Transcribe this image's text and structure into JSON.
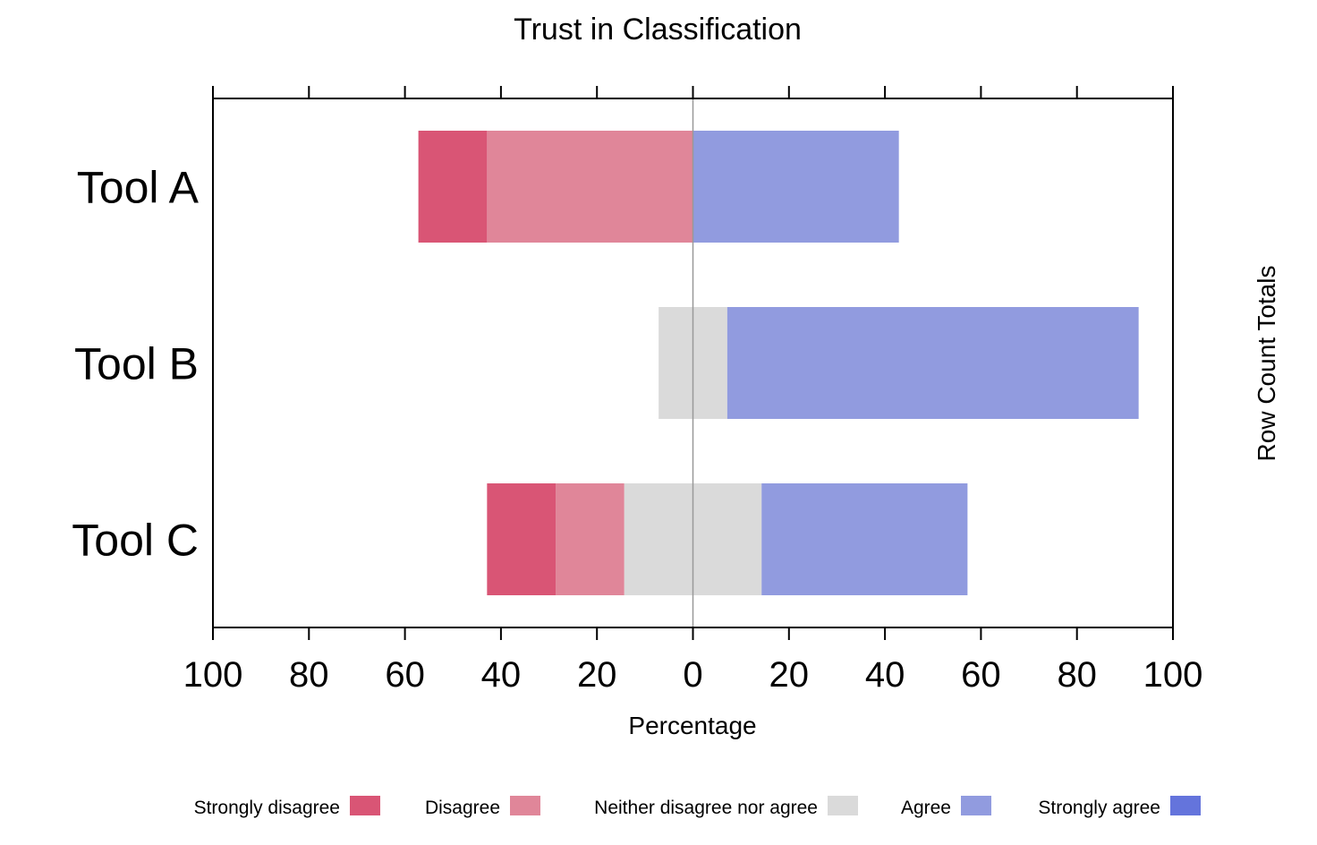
{
  "chart_data": {
    "type": "bar",
    "subtype": "diverging-stacked",
    "title": "Trust in Classification",
    "xlabel": "Percentage",
    "right_label": "Row Count Totals",
    "xlim": [
      -100,
      100
    ],
    "xticks": [
      -100,
      -80,
      -60,
      -40,
      -20,
      0,
      20,
      40,
      60,
      80,
      100
    ],
    "xtick_labels": [
      "100",
      "80",
      "60",
      "40",
      "20",
      "0",
      "20",
      "40",
      "60",
      "80",
      "100"
    ],
    "categories": [
      "Tool A",
      "Tool B",
      "Tool C"
    ],
    "series": [
      {
        "name": "Strongly disagree",
        "color": "#D95575",
        "values": [
          14.3,
          0,
          14.3
        ]
      },
      {
        "name": "Disagree",
        "color": "#E08699",
        "values": [
          42.9,
          0,
          14.3
        ]
      },
      {
        "name": "Neither disagree nor agree",
        "color": "#DADADA",
        "values": [
          0,
          14.3,
          28.6
        ]
      },
      {
        "name": "Agree",
        "color": "#919BDF",
        "values": [
          42.9,
          85.7,
          42.9
        ]
      },
      {
        "name": "Strongly agree",
        "color": "#6474DC",
        "values": [
          0,
          0,
          0
        ]
      }
    ],
    "legend_position": "bottom",
    "zero_line_color": "#999999"
  }
}
